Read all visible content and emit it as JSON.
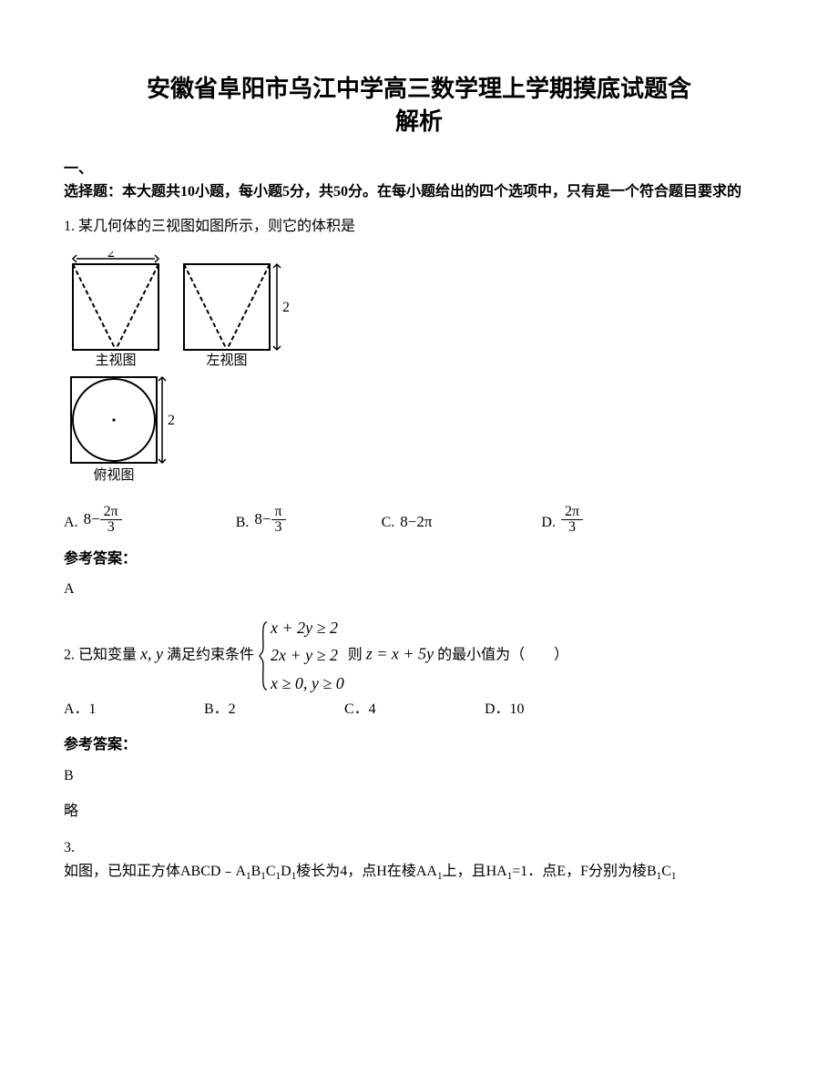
{
  "title_line1": "安徽省阜阳市乌江中学高三数学理上学期摸底试题含",
  "title_line2": "解析",
  "section1_head": "一、",
  "section1_sub": "选择题：本大题共10小题，每小题5分，共50分。在每小题给出的四个选项中，只有是一个符合题目要求的",
  "q1_text": "1. 某几何体的三视图如图所示，则它的体积是",
  "views": {
    "front_label": "主视图",
    "side_label": "左视图",
    "top_label": "俯视图",
    "dim_w": "2",
    "dim_h1": "2",
    "dim_h2": "2",
    "svg_stroke": "#000000",
    "svg_dash": "5,3"
  },
  "q1_options": {
    "A_label": "A.",
    "A_num": "2π",
    "A_den": "3",
    "A_prefix": "8−",
    "B_label": "B.",
    "B_prefix": "8−",
    "B_num": "π",
    "B_den": "3",
    "C_label": "C.",
    "C_text": "8−2π",
    "D_label": "D.",
    "D_num": "2π",
    "D_den": "3",
    "gap_A": 125,
    "gap_B": 105,
    "gap_C": 120
  },
  "ans_head": "参考答案：",
  "q1_ans": "A",
  "q2": {
    "prefix": "2. 已知变量",
    "xy": "x, y",
    "mid": "满足约束条件",
    "c1": "x + 2y ≥ 2",
    "c2": "2x + y ≥ 2",
    "c3": "x ≥ 0, y ≥ 0",
    "tail1": "则",
    "z": "z = x + 5y",
    "tail2": "的最小值为（　　）",
    "optA": "A．1",
    "optB": "B．2",
    "optC": "C．4",
    "optD": "D．10"
  },
  "q2_ans": "B",
  "q2_extra": "略",
  "q3": {
    "num": "3.",
    "text_p1": "如图，已知正方体ABCD﹣A",
    "s1": "1",
    "text_p2": "B",
    "s2": "1",
    "text_p3": "C",
    "s3": "1",
    "text_p4": "D",
    "s4": "1",
    "text_p5": "棱长为4，点H在棱AA",
    "s5": "1",
    "text_p6": "上，且HA",
    "s6": "1",
    "text_p7": "=1．点E，F分别为棱B",
    "s7": "1",
    "text_p8": "C",
    "s8": "1"
  },
  "colors": {
    "text": "#000000",
    "bg": "#ffffff"
  }
}
